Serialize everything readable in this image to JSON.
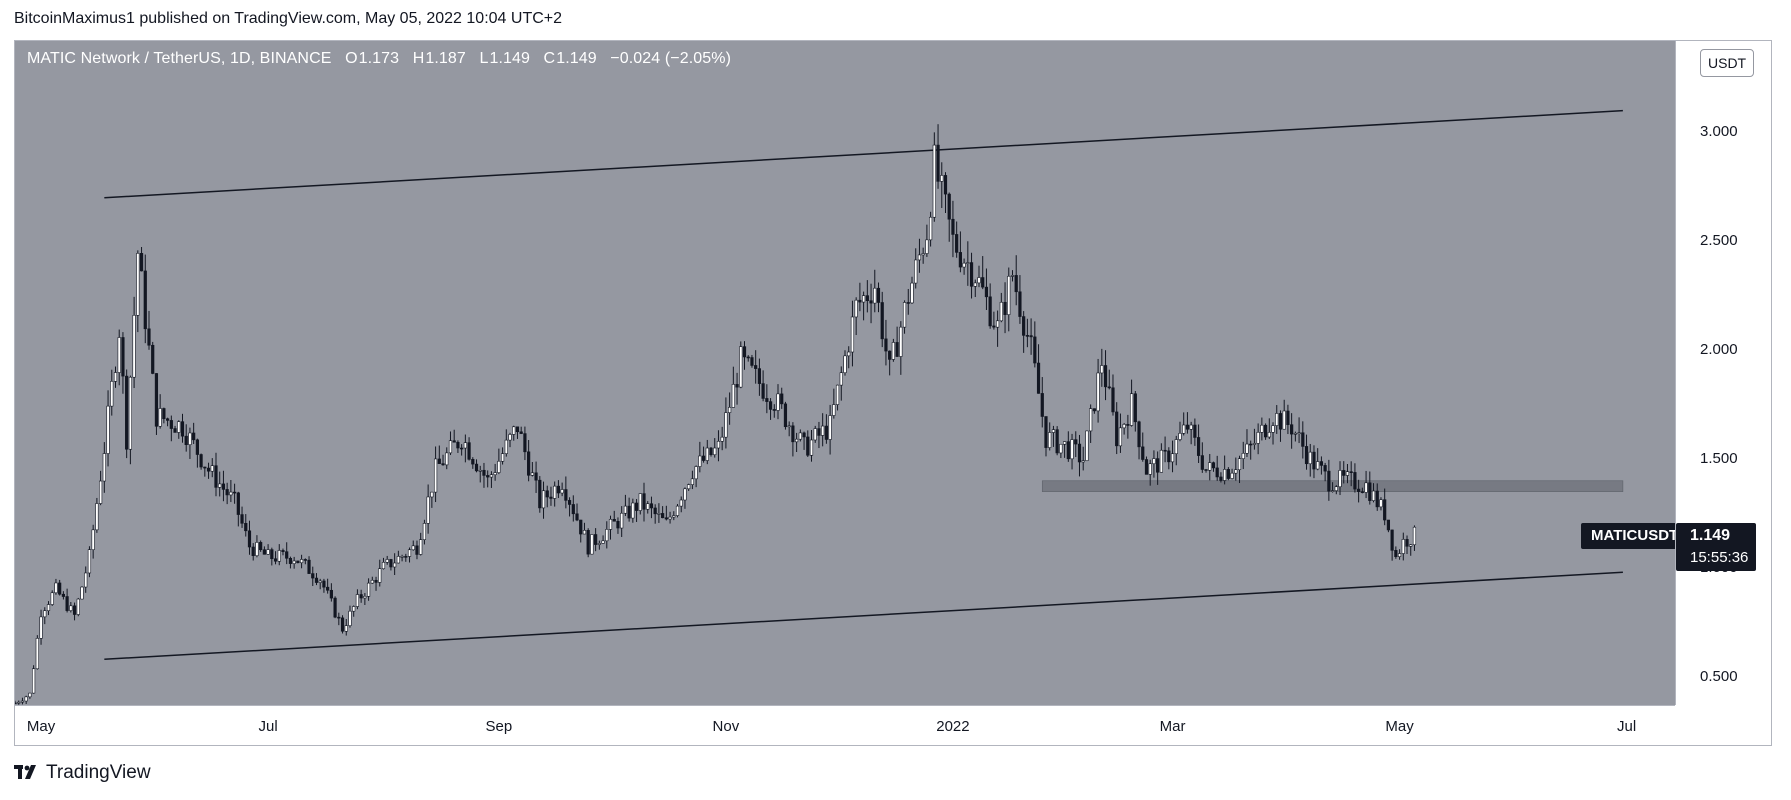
{
  "header": {
    "text": "BitcoinMaximus1 published on TradingView.com, May 05, 2022 10:04 UTC+2"
  },
  "legend": {
    "title": "MATIC Network / TetherUS, 1D, BINANCE",
    "o_label": "O",
    "o": "1.173",
    "h_label": "H",
    "h": "1.187",
    "l_label": "L",
    "l": "1.149",
    "c_label": "C",
    "c": "1.149",
    "change": "−0.024 (−2.05%)"
  },
  "price_axis": {
    "currency": "USDT"
  },
  "symbol": "MATICUSDT",
  "last_price": "1.149",
  "countdown": "15:55:36",
  "footer": {
    "brand": "TradingView",
    "logo_icon": "tradingview-logo-icon"
  },
  "colors": {
    "plot_bg": "#9598a1",
    "candle": "#131722",
    "zone": "#6d707a",
    "text": "#131722"
  },
  "chart_data": {
    "type": "candlestick",
    "title": "MATIC Network / TetherUS, 1D, BINANCE",
    "x_ticks": [
      "May",
      "Jul",
      "Sep",
      "Nov",
      "2022",
      "Mar",
      "May",
      "Jul"
    ],
    "x_tick_dates": [
      "2021-05-01",
      "2021-07-01",
      "2021-09-01",
      "2021-11-01",
      "2022-01-01",
      "2022-03-01",
      "2022-05-01",
      "2022-07-01"
    ],
    "y_ticks": [
      "3.000",
      "2.500",
      "2.000",
      "1.500",
      "1.000",
      "0.500"
    ],
    "y_tick_values": [
      3.0,
      2.5,
      2.0,
      1.5,
      1.0,
      0.5
    ],
    "ylim": [
      0.37,
      3.42
    ],
    "x_range": [
      "2021-04-24",
      "2022-07-14"
    ],
    "grid": false,
    "price_path": [
      [
        "2021-04-24",
        0.38
      ],
      [
        "2021-04-28",
        0.42
      ],
      [
        "2021-05-01",
        0.8
      ],
      [
        "2021-05-05",
        0.9
      ],
      [
        "2021-05-10",
        0.78
      ],
      [
        "2021-05-14",
        1.05
      ],
      [
        "2021-05-18",
        1.55
      ],
      [
        "2021-05-22",
        2.1
      ],
      [
        "2021-05-24",
        1.6
      ],
      [
        "2021-05-27",
        2.45
      ],
      [
        "2021-06-01",
        1.7
      ],
      [
        "2021-06-08",
        1.65
      ],
      [
        "2021-06-15",
        1.45
      ],
      [
        "2021-06-22",
        1.3
      ],
      [
        "2021-06-26",
        1.1
      ],
      [
        "2021-07-01",
        1.05
      ],
      [
        "2021-07-08",
        1.05
      ],
      [
        "2021-07-15",
        0.95
      ],
      [
        "2021-07-21",
        0.72
      ],
      [
        "2021-07-25",
        0.85
      ],
      [
        "2021-08-01",
        1.0
      ],
      [
        "2021-08-10",
        1.1
      ],
      [
        "2021-08-15",
        1.45
      ],
      [
        "2021-08-22",
        1.6
      ],
      [
        "2021-08-29",
        1.4
      ],
      [
        "2021-09-06",
        1.65
      ],
      [
        "2021-09-12",
        1.3
      ],
      [
        "2021-09-18",
        1.4
      ],
      [
        "2021-09-25",
        1.1
      ],
      [
        "2021-10-02",
        1.2
      ],
      [
        "2021-10-09",
        1.3
      ],
      [
        "2021-10-16",
        1.2
      ],
      [
        "2021-10-23",
        1.45
      ],
      [
        "2021-10-30",
        1.55
      ],
      [
        "2021-11-05",
        1.95
      ],
      [
        "2021-11-10",
        1.85
      ],
      [
        "2021-11-15",
        1.75
      ],
      [
        "2021-11-22",
        1.55
      ],
      [
        "2021-11-29",
        1.65
      ],
      [
        "2021-12-06",
        2.2
      ],
      [
        "2021-12-11",
        2.3
      ],
      [
        "2021-12-15",
        1.9
      ],
      [
        "2021-12-20",
        2.25
      ],
      [
        "2021-12-25",
        2.55
      ],
      [
        "2021-12-27",
        2.85
      ],
      [
        "2022-01-01",
        2.5
      ],
      [
        "2022-01-07",
        2.35
      ],
      [
        "2022-01-13",
        2.1
      ],
      [
        "2022-01-17",
        2.35
      ],
      [
        "2022-01-22",
        2.0
      ],
      [
        "2022-01-26",
        1.6
      ],
      [
        "2022-02-01",
        1.55
      ],
      [
        "2022-02-05",
        1.5
      ],
      [
        "2022-02-10",
        1.95
      ],
      [
        "2022-02-14",
        1.6
      ],
      [
        "2022-02-18",
        1.75
      ],
      [
        "2022-02-22",
        1.45
      ],
      [
        "2022-02-27",
        1.5
      ],
      [
        "2022-03-05",
        1.65
      ],
      [
        "2022-03-10",
        1.45
      ],
      [
        "2022-03-16",
        1.45
      ],
      [
        "2022-03-22",
        1.55
      ],
      [
        "2022-03-28",
        1.7
      ],
      [
        "2022-04-02",
        1.65
      ],
      [
        "2022-04-07",
        1.5
      ],
      [
        "2022-04-12",
        1.4
      ],
      [
        "2022-04-17",
        1.4
      ],
      [
        "2022-04-22",
        1.38
      ],
      [
        "2022-04-27",
        1.25
      ],
      [
        "2022-04-30",
        1.05
      ],
      [
        "2022-05-02",
        1.12
      ],
      [
        "2022-05-05",
        1.149
      ]
    ],
    "annotations": {
      "upper_trendline": [
        [
          "2021-05-18",
          2.7
        ],
        [
          "2022-06-30",
          3.1
        ]
      ],
      "lower_trendline": [
        [
          "2021-05-18",
          0.58
        ],
        [
          "2022-06-30",
          0.98
        ]
      ],
      "support_zone": {
        "from": "2022-01-25",
        "to": "2022-06-30",
        "low": 1.35,
        "high": 1.4
      }
    },
    "last": {
      "label": "MATICUSDT",
      "value": 1.149
    }
  }
}
